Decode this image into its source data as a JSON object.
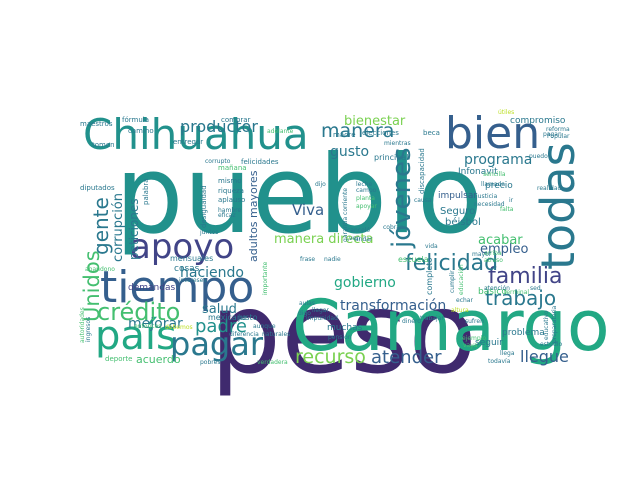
{
  "palette": {
    "dark_purple": "#3f2a6e",
    "indigo": "#414487",
    "slate_blue": "#355f8d",
    "teal_blue": "#2a788e",
    "teal": "#21918c",
    "green_teal": "#22a884",
    "green": "#44bf70",
    "lime": "#7ad151",
    "yellow_green": "#bddf26"
  },
  "words": [
    {
      "text": "pueblo",
      "color": "#21918c"
    },
    {
      "text": "peso",
      "color": "#3f2a6e"
    },
    {
      "text": "Camargo",
      "color": "#22a884"
    },
    {
      "text": "Chihuahua",
      "color": "#21918c"
    },
    {
      "text": "tiempo",
      "color": "#355f8d"
    },
    {
      "text": "bien",
      "color": "#355f8d"
    },
    {
      "text": "todas",
      "color": "#2a788e"
    },
    {
      "text": "apoyo",
      "color": "#414487"
    },
    {
      "text": "país",
      "color": "#22a884"
    },
    {
      "text": "pagar",
      "color": "#2a788e"
    },
    {
      "text": "familia",
      "color": "#414487"
    },
    {
      "text": "jóvenes",
      "color": "#2a788e"
    },
    {
      "text": "crédito",
      "color": "#44bf70"
    },
    {
      "text": "manera",
      "color": "#2a788e"
    },
    {
      "text": "felicidad",
      "color": "#2a788e"
    },
    {
      "text": "trabajo",
      "color": "#2a788e"
    },
    {
      "text": "recurso",
      "color": "#7ad151"
    },
    {
      "text": "atender",
      "color": "#355f8d"
    },
    {
      "text": "gente",
      "color": "#2a788e"
    },
    {
      "text": "Unidos",
      "color": "#44bf70"
    },
    {
      "text": "padre",
      "color": "#21918c"
    },
    {
      "text": "productor",
      "color": "#2a788e"
    },
    {
      "text": "haciendo",
      "color": "#2a788e"
    },
    {
      "text": "mejorar",
      "color": "#2a788e"
    },
    {
      "text": "bienestar",
      "color": "#7ad151"
    },
    {
      "text": "manera directa",
      "color": "#7ad151"
    },
    {
      "text": "gobierno",
      "color": "#22a884"
    },
    {
      "text": "transformación",
      "color": "#355f8d"
    },
    {
      "text": "llegue",
      "color": "#355f8d"
    },
    {
      "text": "programa",
      "color": "#2a788e"
    },
    {
      "text": "empleo",
      "color": "#355f8d"
    },
    {
      "text": "acabar",
      "color": "#44bf70"
    },
    {
      "text": "salud",
      "color": "#2a788e"
    },
    {
      "text": "Viva",
      "color": "#355f8d"
    },
    {
      "text": "gusto",
      "color": "#2a788e"
    },
    {
      "text": "corrupción",
      "color": "#2a788e"
    },
    {
      "text": "peticiones",
      "color": "#2a788e"
    },
    {
      "text": "adultos mayores",
      "color": "#355f8d"
    },
    {
      "text": "acuerdo",
      "color": "#44bf70"
    },
    {
      "text": "demandas",
      "color": "#414487"
    },
    {
      "text": "mensuales",
      "color": "#2a788e"
    },
    {
      "text": "cosas",
      "color": "#2a788e"
    },
    {
      "text": "muchas",
      "color": "#2a788e"
    },
    {
      "text": "Seguro",
      "color": "#2a788e"
    },
    {
      "text": "compromiso",
      "color": "#2a788e"
    },
    {
      "text": "Infonavit",
      "color": "#2a788e"
    },
    {
      "text": "básico",
      "color": "#44bf70"
    },
    {
      "text": "precio",
      "color": "#2a788e"
    },
    {
      "text": "béisbol",
      "color": "#2a788e"
    },
    {
      "text": "impulsar",
      "color": "#355f8d"
    },
    {
      "text": "seguir",
      "color": "#2a788e"
    },
    {
      "text": "problema",
      "color": "#2a788e"
    },
    {
      "text": "escuela",
      "color": "#44bf70"
    },
    {
      "text": "completo",
      "color": "#2a788e"
    },
    {
      "text": "principal",
      "color": "#2a788e"
    },
    {
      "text": "mexicano",
      "color": "#2a788e"
    },
    {
      "text": "justo",
      "color": "#2a788e"
    },
    {
      "text": "maestros",
      "color": "#2a788e"
    },
    {
      "text": "diputados",
      "color": "#2a788e"
    },
    {
      "text": "fórmula",
      "color": "#2a788e"
    },
    {
      "text": "camino",
      "color": "#2a788e"
    },
    {
      "text": "entregar",
      "color": "#2a788e"
    },
    {
      "text": "tomen",
      "color": "#2a788e"
    },
    {
      "text": "comprar",
      "color": "#2a788e"
    },
    {
      "text": "adelante",
      "color": "#44bf70"
    },
    {
      "text": "madre",
      "color": "#2a788e"
    },
    {
      "text": "elecciones",
      "color": "#2a788e"
    },
    {
      "text": "beca",
      "color": "#2a788e"
    },
    {
      "text": "felicidades",
      "color": "#2a788e"
    },
    {
      "text": "mañana",
      "color": "#44bf70"
    },
    {
      "text": "mismo",
      "color": "#2a788e"
    },
    {
      "text": "riqueza",
      "color": "#2a788e"
    },
    {
      "text": "aplauso",
      "color": "#2a788e"
    },
    {
      "text": "hambre",
      "color": "#2a788e"
    },
    {
      "text": "eficaz",
      "color": "#2a788e"
    },
    {
      "text": "palabra",
      "color": "#2a788e"
    },
    {
      "text": "juntos",
      "color": "#2a788e"
    },
    {
      "text": "desigualdad",
      "color": "#2a788e"
    },
    {
      "text": "abandono",
      "color": "#44bf70"
    },
    {
      "text": "intereses",
      "color": "#2a788e"
    },
    {
      "text": "debemos",
      "color": "#bddf26"
    },
    {
      "text": "entonces",
      "color": "#44bf70"
    },
    {
      "text": "deporte",
      "color": "#44bf70"
    },
    {
      "text": "pobres",
      "color": "#2a788e"
    },
    {
      "text": "verdadera",
      "color": "#44bf70"
    },
    {
      "text": "diferencia",
      "color": "#2a788e"
    },
    {
      "text": "naturales",
      "color": "#2a788e"
    },
    {
      "text": "aunque",
      "color": "#2a788e"
    },
    {
      "text": "importante",
      "color": "#44bf70"
    },
    {
      "text": "aulas",
      "color": "#2a788e"
    },
    {
      "text": "digo",
      "color": "#2a788e"
    },
    {
      "text": "llegar",
      "color": "#2a788e"
    },
    {
      "text": "impunidad",
      "color": "#2a788e"
    },
    {
      "text": "pensión",
      "color": "#2a788e"
    },
    {
      "text": "frase",
      "color": "#2a788e"
    },
    {
      "text": "nadie",
      "color": "#2a788e"
    },
    {
      "text": "canceló",
      "color": "#2a788e"
    },
    {
      "text": "ven",
      "color": "#2a788e"
    },
    {
      "text": "cobran",
      "color": "#2a788e"
    },
    {
      "text": "vida",
      "color": "#2a788e"
    },
    {
      "text": "leche",
      "color": "#2a788e"
    },
    {
      "text": "campo",
      "color": "#2a788e"
    },
    {
      "text": "planta",
      "color": "#44bf70"
    },
    {
      "text": "apoyar",
      "color": "#44bf70"
    },
    {
      "text": "dijo",
      "color": "#2a788e"
    },
    {
      "text": "mientras",
      "color": "#2a788e"
    },
    {
      "text": "causa",
      "color": "#2a788e"
    },
    {
      "text": "llamada",
      "color": "#2a788e"
    },
    {
      "text": "necesidad",
      "color": "#2a788e"
    },
    {
      "text": "justicia",
      "color": "#2a788e"
    },
    {
      "text": "sencilla",
      "color": "#44bf70"
    },
    {
      "text": "falta",
      "color": "#44bf70"
    },
    {
      "text": "ir",
      "color": "#2a788e"
    },
    {
      "text": "realidad",
      "color": "#2a788e"
    },
    {
      "text": "puedo",
      "color": "#2a788e"
    },
    {
      "text": "pagan",
      "color": "#2a788e"
    },
    {
      "text": "reforma",
      "color": "#2a788e"
    },
    {
      "text": "Popular",
      "color": "#2a788e"
    },
    {
      "text": "útiles",
      "color": "#bddf26"
    },
    {
      "text": "educación",
      "color": "#44bf70"
    },
    {
      "text": "cumplir",
      "color": "#2a788e"
    },
    {
      "text": "arriba",
      "color": "#44bf70"
    },
    {
      "text": "terminal",
      "color": "#44bf70"
    },
    {
      "text": "atraso",
      "color": "#44bf70"
    },
    {
      "text": "atención",
      "color": "#2a788e"
    },
    {
      "text": "sed",
      "color": "#2a788e"
    },
    {
      "text": "echar",
      "color": "#2a788e"
    },
    {
      "text": "altura",
      "color": "#bddf26"
    },
    {
      "text": "trabajar",
      "color": "#2a788e"
    },
    {
      "text": "dinero",
      "color": "#2a788e"
    },
    {
      "text": "sufren",
      "color": "#2a788e"
    },
    {
      "text": "ejemplo",
      "color": "#44bf70"
    },
    {
      "text": "vaya",
      "color": "#44bf70"
    },
    {
      "text": "llega",
      "color": "#2a788e"
    },
    {
      "text": "todavía",
      "color": "#2a788e"
    },
    {
      "text": "estudio",
      "color": "#2a788e"
    },
    {
      "text": "preparatoria",
      "color": "#2a788e"
    },
    {
      "text": "educativo",
      "color": "#2a788e"
    },
    {
      "text": "ingresos",
      "color": "#2a788e"
    },
    {
      "text": "autoridades",
      "color": "#44bf70"
    },
    {
      "text": "discapacidad",
      "color": "#2a788e"
    },
    {
      "text": "garantía corriente",
      "color": "#2a788e"
    },
    {
      "text": "mayor",
      "color": "#2a788e"
    },
    {
      "text": "andar",
      "color": "#2a788e"
    },
    {
      "text": "corrupto",
      "color": "#2a788e"
    }
  ]
}
